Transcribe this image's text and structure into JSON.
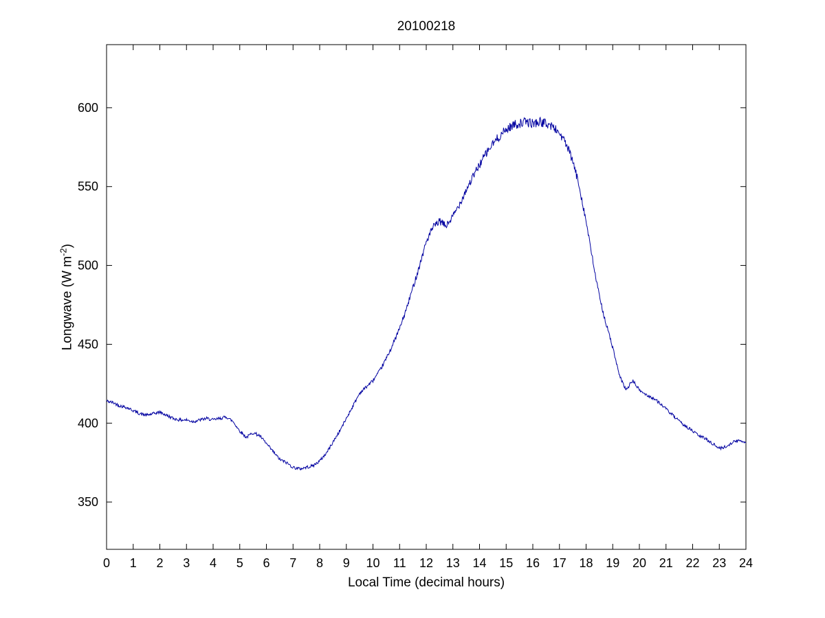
{
  "chart_data": {
    "type": "line",
    "title": "20100218",
    "xlabel": "Local Time (decimal hours)",
    "ylabel": {
      "prefix": "Longwave (W m",
      "superscript": "-2",
      "suffix": ")"
    },
    "xlim": [
      0,
      24
    ],
    "ylim": [
      320,
      640
    ],
    "xticks": [
      0,
      1,
      2,
      3,
      4,
      5,
      6,
      7,
      8,
      9,
      10,
      11,
      12,
      13,
      14,
      15,
      16,
      17,
      18,
      19,
      20,
      21,
      22,
      23,
      24
    ],
    "yticks": [
      350,
      400,
      450,
      500,
      550,
      600
    ],
    "line_color": "#0000A0",
    "axis_color": "#000000",
    "background": "#ffffff",
    "grid": false,
    "legend": null,
    "noise": {
      "base": 1.0,
      "scale": 2.0,
      "seed": 42
    },
    "series": [
      {
        "name": "longwave",
        "x": [
          0,
          0.25,
          0.5,
          0.75,
          1,
          1.25,
          1.5,
          1.75,
          2,
          2.25,
          2.5,
          2.75,
          3,
          3.25,
          3.5,
          3.75,
          4,
          4.25,
          4.5,
          4.75,
          5,
          5.25,
          5.5,
          5.75,
          6,
          6.25,
          6.5,
          6.75,
          7,
          7.25,
          7.5,
          7.75,
          8,
          8.25,
          8.5,
          8.75,
          9,
          9.25,
          9.5,
          9.75,
          10,
          10.25,
          10.5,
          10.75,
          11,
          11.25,
          11.5,
          11.75,
          12,
          12.25,
          12.5,
          12.75,
          13,
          13.25,
          13.5,
          13.75,
          14,
          14.25,
          14.5,
          14.75,
          15,
          15.25,
          15.5,
          15.75,
          16,
          16.25,
          16.5,
          16.75,
          17,
          17.25,
          17.5,
          17.75,
          18,
          18.25,
          18.5,
          18.75,
          19,
          19.25,
          19.5,
          19.75,
          20,
          20.25,
          20.5,
          20.75,
          21,
          21.25,
          21.5,
          21.75,
          22,
          22.25,
          22.5,
          22.75,
          23,
          23.25,
          23.5,
          23.75,
          24
        ],
        "y": [
          414,
          413,
          411,
          410,
          408,
          406,
          405,
          406,
          407,
          405,
          403,
          402,
          402,
          401,
          402,
          403,
          402,
          403,
          404,
          401,
          395,
          391,
          394,
          392,
          387,
          382,
          377,
          375,
          372,
          371,
          372,
          373,
          376,
          381,
          388,
          395,
          403,
          411,
          419,
          423,
          427,
          433,
          441,
          450,
          460,
          472,
          486,
          500,
          515,
          524,
          528,
          525,
          531,
          539,
          548,
          556,
          564,
          571,
          577,
          582,
          586,
          589,
          590,
          591,
          590,
          591,
          590,
          588,
          584,
          577,
          566,
          550,
          528,
          503,
          480,
          463,
          448,
          430,
          421,
          427,
          421,
          418,
          416,
          413,
          409,
          405,
          401,
          398,
          395,
          392,
          390,
          387,
          384,
          385,
          388,
          389,
          388
        ]
      }
    ]
  }
}
